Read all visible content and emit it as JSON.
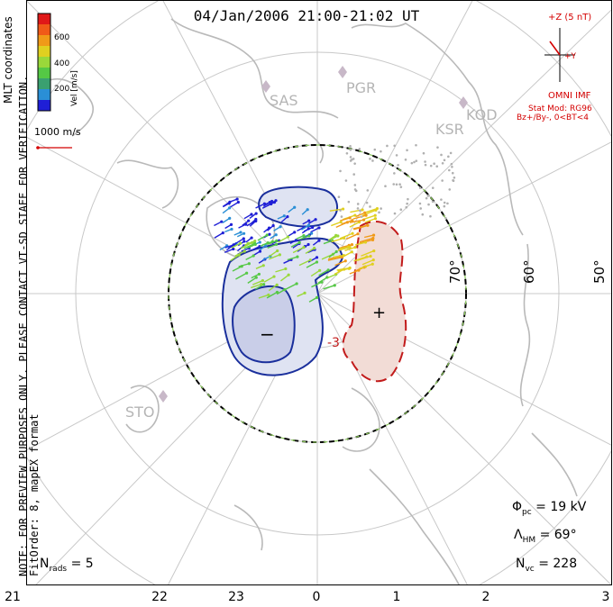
{
  "title": "04/Jan/2006 21:00-21:02 UT",
  "coordinates_label": "MLT coordinates",
  "side_note": "NOTE: FOR PREVIEW PURPOSES ONLY. PLEASE CONTACT VT-SD STAFF FOR VERIFICATION.",
  "fit_info": "FitOrder: 8,  mapEX format",
  "colorbar": {
    "axis_label": "Vel [m/s]",
    "ticks": [
      "600",
      "400",
      "200"
    ],
    "colors": [
      "#1f1fd6",
      "#2a8fd6",
      "#3aa070",
      "#55c845",
      "#9ad83a",
      "#e0d020",
      "#f09a18",
      "#f05a18",
      "#e01818"
    ]
  },
  "reference_vector": {
    "label": "1000 m/s",
    "color": "#d40000"
  },
  "imf": {
    "z_label": "+Z (5 nT)",
    "y_label": "+Y",
    "source": "OMNI IMF",
    "stat_model": "Stat Mod: RG96",
    "condition": "Bz+/By-, 0<BT<4",
    "color": "#d40000"
  },
  "radars": [
    "SAS",
    "PGR",
    "KOD",
    "KSR",
    "STO"
  ],
  "latitude_labels": [
    "70°",
    "60°",
    "50°"
  ],
  "potential_markers": {
    "min": "−",
    "max": "+"
  },
  "contour_label": "-3",
  "stats": {
    "phi_label": "Φ",
    "phi_sub": "pc",
    "phi_value": "= 19 kV",
    "lambda_label": "Λ",
    "lambda_sub": "HM",
    "lambda_value": "= 69°",
    "nvc_label": "N",
    "nvc_sub": "vc",
    "nvc_value": "= 228",
    "nrads_label": "N",
    "nrads_sub": "rads",
    "nrads_value": "= 5"
  },
  "mlt_ticks": [
    "21",
    "22",
    "23",
    "0",
    "1",
    "2",
    "3"
  ],
  "colors": {
    "negative_cell_fill": "#dfe3f2",
    "negative_contour": "#1a2f9c",
    "positive_cell_fill": "#f2dcd6",
    "positive_contour": "#c21b1b",
    "land": "#b9b9b9",
    "grid": "#bfbfbf"
  }
}
